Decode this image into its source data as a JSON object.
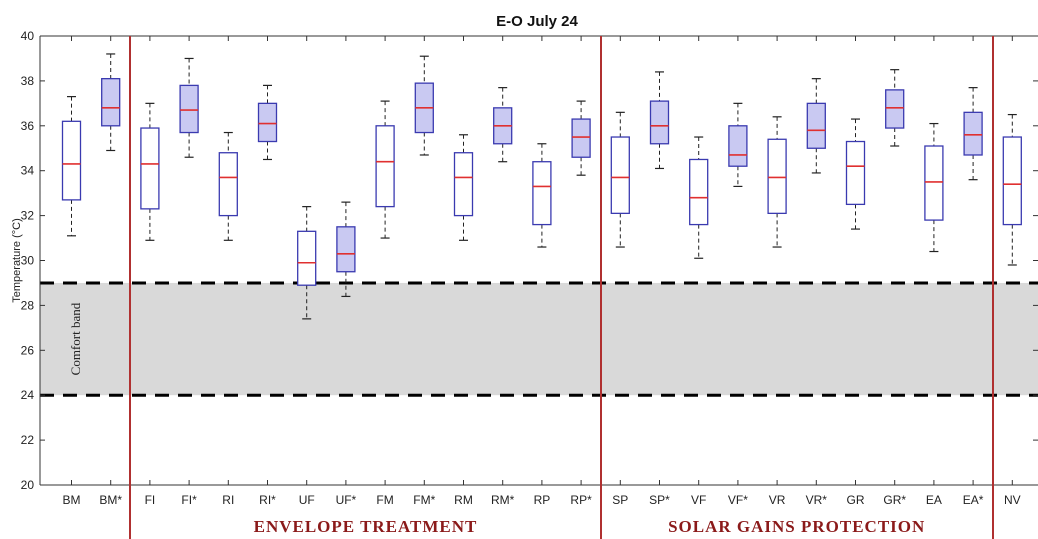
{
  "chart_data": {
    "type": "box",
    "title": "E-O July 24",
    "ylabel": "Temperature (°C)",
    "xlabel": "",
    "ylim": [
      20,
      40
    ],
    "yticks": [
      20,
      22,
      24,
      26,
      28,
      30,
      32,
      34,
      36,
      38,
      40
    ],
    "comfort_band": {
      "label": "Comfort band",
      "range": [
        24,
        29
      ]
    },
    "groups": [
      {
        "label": "ENVELOPE TREATMENT",
        "from": "FI",
        "to": "RP*"
      },
      {
        "label": "SOLAR GAINS PROTECTION",
        "from": "SP",
        "to": "EA*"
      }
    ],
    "colors": {
      "box_edge": "#3a3ab0",
      "median": "#e03030",
      "shaded_fill": "#c9c9f2",
      "group_line": "#b03030",
      "group_text": "#8b1a1a",
      "band": "#d9d9d9"
    },
    "boxes": [
      {
        "label": "BM",
        "min": 31.1,
        "q1": 32.7,
        "median": 34.3,
        "q3": 36.2,
        "max": 37.3,
        "shaded": false
      },
      {
        "label": "BM*",
        "min": 34.9,
        "q1": 36.0,
        "median": 36.8,
        "q3": 38.1,
        "max": 39.2,
        "shaded": true
      },
      {
        "label": "FI",
        "min": 30.9,
        "q1": 32.3,
        "median": 34.3,
        "q3": 35.9,
        "max": 37.0,
        "shaded": false
      },
      {
        "label": "FI*",
        "min": 34.6,
        "q1": 35.7,
        "median": 36.7,
        "q3": 37.8,
        "max": 39.0,
        "shaded": true
      },
      {
        "label": "RI",
        "min": 30.9,
        "q1": 32.0,
        "median": 33.7,
        "q3": 34.8,
        "max": 35.7,
        "shaded": false
      },
      {
        "label": "RI*",
        "min": 34.5,
        "q1": 35.3,
        "median": 36.1,
        "q3": 37.0,
        "max": 37.8,
        "shaded": true
      },
      {
        "label": "UF",
        "min": 27.4,
        "q1": 28.9,
        "median": 29.9,
        "q3": 31.3,
        "max": 32.4,
        "shaded": false
      },
      {
        "label": "UF*",
        "min": 28.4,
        "q1": 29.5,
        "median": 30.3,
        "q3": 31.5,
        "max": 32.6,
        "shaded": true
      },
      {
        "label": "FM",
        "min": 31.0,
        "q1": 32.4,
        "median": 34.4,
        "q3": 36.0,
        "max": 37.1,
        "shaded": false
      },
      {
        "label": "FM*",
        "min": 34.7,
        "q1": 35.7,
        "median": 36.8,
        "q3": 37.9,
        "max": 39.1,
        "shaded": true
      },
      {
        "label": "RM",
        "min": 30.9,
        "q1": 32.0,
        "median": 33.7,
        "q3": 34.8,
        "max": 35.6,
        "shaded": false
      },
      {
        "label": "RM*",
        "min": 34.4,
        "q1": 35.2,
        "median": 36.0,
        "q3": 36.8,
        "max": 37.7,
        "shaded": true
      },
      {
        "label": "RP",
        "min": 30.6,
        "q1": 31.6,
        "median": 33.3,
        "q3": 34.4,
        "max": 35.2,
        "shaded": false
      },
      {
        "label": "RP*",
        "min": 33.8,
        "q1": 34.6,
        "median": 35.5,
        "q3": 36.3,
        "max": 37.1,
        "shaded": true
      },
      {
        "label": "SP",
        "min": 30.6,
        "q1": 32.1,
        "median": 33.7,
        "q3": 35.5,
        "max": 36.6,
        "shaded": false
      },
      {
        "label": "SP*",
        "min": 34.1,
        "q1": 35.2,
        "median": 36.0,
        "q3": 37.1,
        "max": 38.4,
        "shaded": true
      },
      {
        "label": "VF",
        "min": 30.1,
        "q1": 31.6,
        "median": 32.8,
        "q3": 34.5,
        "max": 35.5,
        "shaded": false
      },
      {
        "label": "VF*",
        "min": 33.3,
        "q1": 34.2,
        "median": 34.7,
        "q3": 36.0,
        "max": 37.0,
        "shaded": true
      },
      {
        "label": "VR",
        "min": 30.6,
        "q1": 32.1,
        "median": 33.7,
        "q3": 35.4,
        "max": 36.4,
        "shaded": false
      },
      {
        "label": "VR*",
        "min": 33.9,
        "q1": 35.0,
        "median": 35.8,
        "q3": 37.0,
        "max": 38.1,
        "shaded": true
      },
      {
        "label": "GR",
        "min": 31.4,
        "q1": 32.5,
        "median": 34.2,
        "q3": 35.3,
        "max": 36.3,
        "shaded": false
      },
      {
        "label": "GR*",
        "min": 35.1,
        "q1": 35.9,
        "median": 36.8,
        "q3": 37.6,
        "max": 38.5,
        "shaded": true
      },
      {
        "label": "EA",
        "min": 30.4,
        "q1": 31.8,
        "median": 33.5,
        "q3": 35.1,
        "max": 36.1,
        "shaded": false
      },
      {
        "label": "EA*",
        "min": 33.6,
        "q1": 34.7,
        "median": 35.6,
        "q3": 36.6,
        "max": 37.7,
        "shaded": true
      },
      {
        "label": "NV",
        "min": 29.8,
        "q1": 31.6,
        "median": 33.4,
        "q3": 35.5,
        "max": 36.5,
        "shaded": false
      }
    ]
  }
}
